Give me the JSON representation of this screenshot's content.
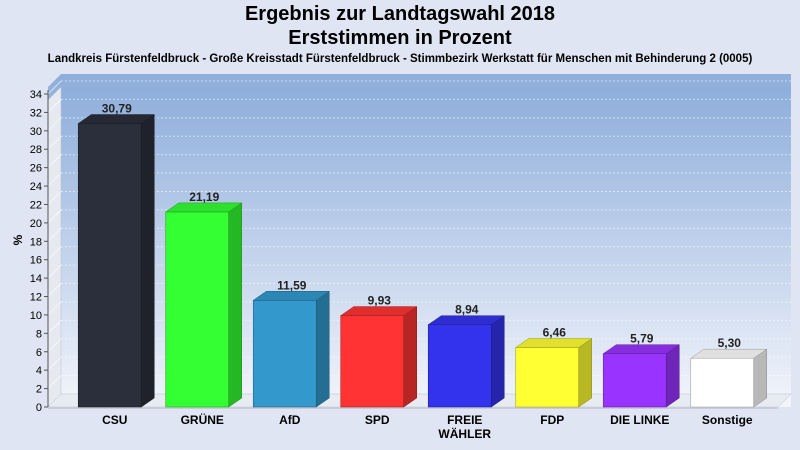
{
  "chart_data": {
    "type": "bar",
    "title": "Ergebnis zur Landtagswahl 2018",
    "subtitle": "Erststimmen in Prozent",
    "caption": "Landkreis Fürstenfeldbruck - Große Kreisstadt Fürstenfeldbruck - Stimmbezirk Werkstatt für Menschen mit Behinderung 2 (0005)",
    "ylabel": "%",
    "xlabel": "",
    "ylim": [
      0,
      34
    ],
    "ytick_step": 2,
    "grid": true,
    "categories": [
      "CSU",
      "GRÜNE",
      "AfD",
      "SPD",
      "FREIE WÄHLER",
      "FDP",
      "DIE LINKE",
      "Sonstige"
    ],
    "category_lines": [
      [
        "CSU"
      ],
      [
        "GRÜNE"
      ],
      [
        "AfD"
      ],
      [
        "SPD"
      ],
      [
        "FREIE",
        "WÄHLER"
      ],
      [
        "FDP"
      ],
      [
        "DIE LINKE"
      ],
      [
        "Sonstige"
      ]
    ],
    "values": [
      30.79,
      21.19,
      11.59,
      9.93,
      8.94,
      6.46,
      5.79,
      5.3
    ],
    "value_labels": [
      "30,79",
      "21,19",
      "11,59",
      "9,93",
      "8,94",
      "6,46",
      "5,79",
      "5,30"
    ],
    "colors": [
      "#2b2f3b",
      "#33ff33",
      "#3399cc",
      "#ff3333",
      "#3333ee",
      "#ffff33",
      "#9933ff",
      "#ffffff"
    ]
  }
}
